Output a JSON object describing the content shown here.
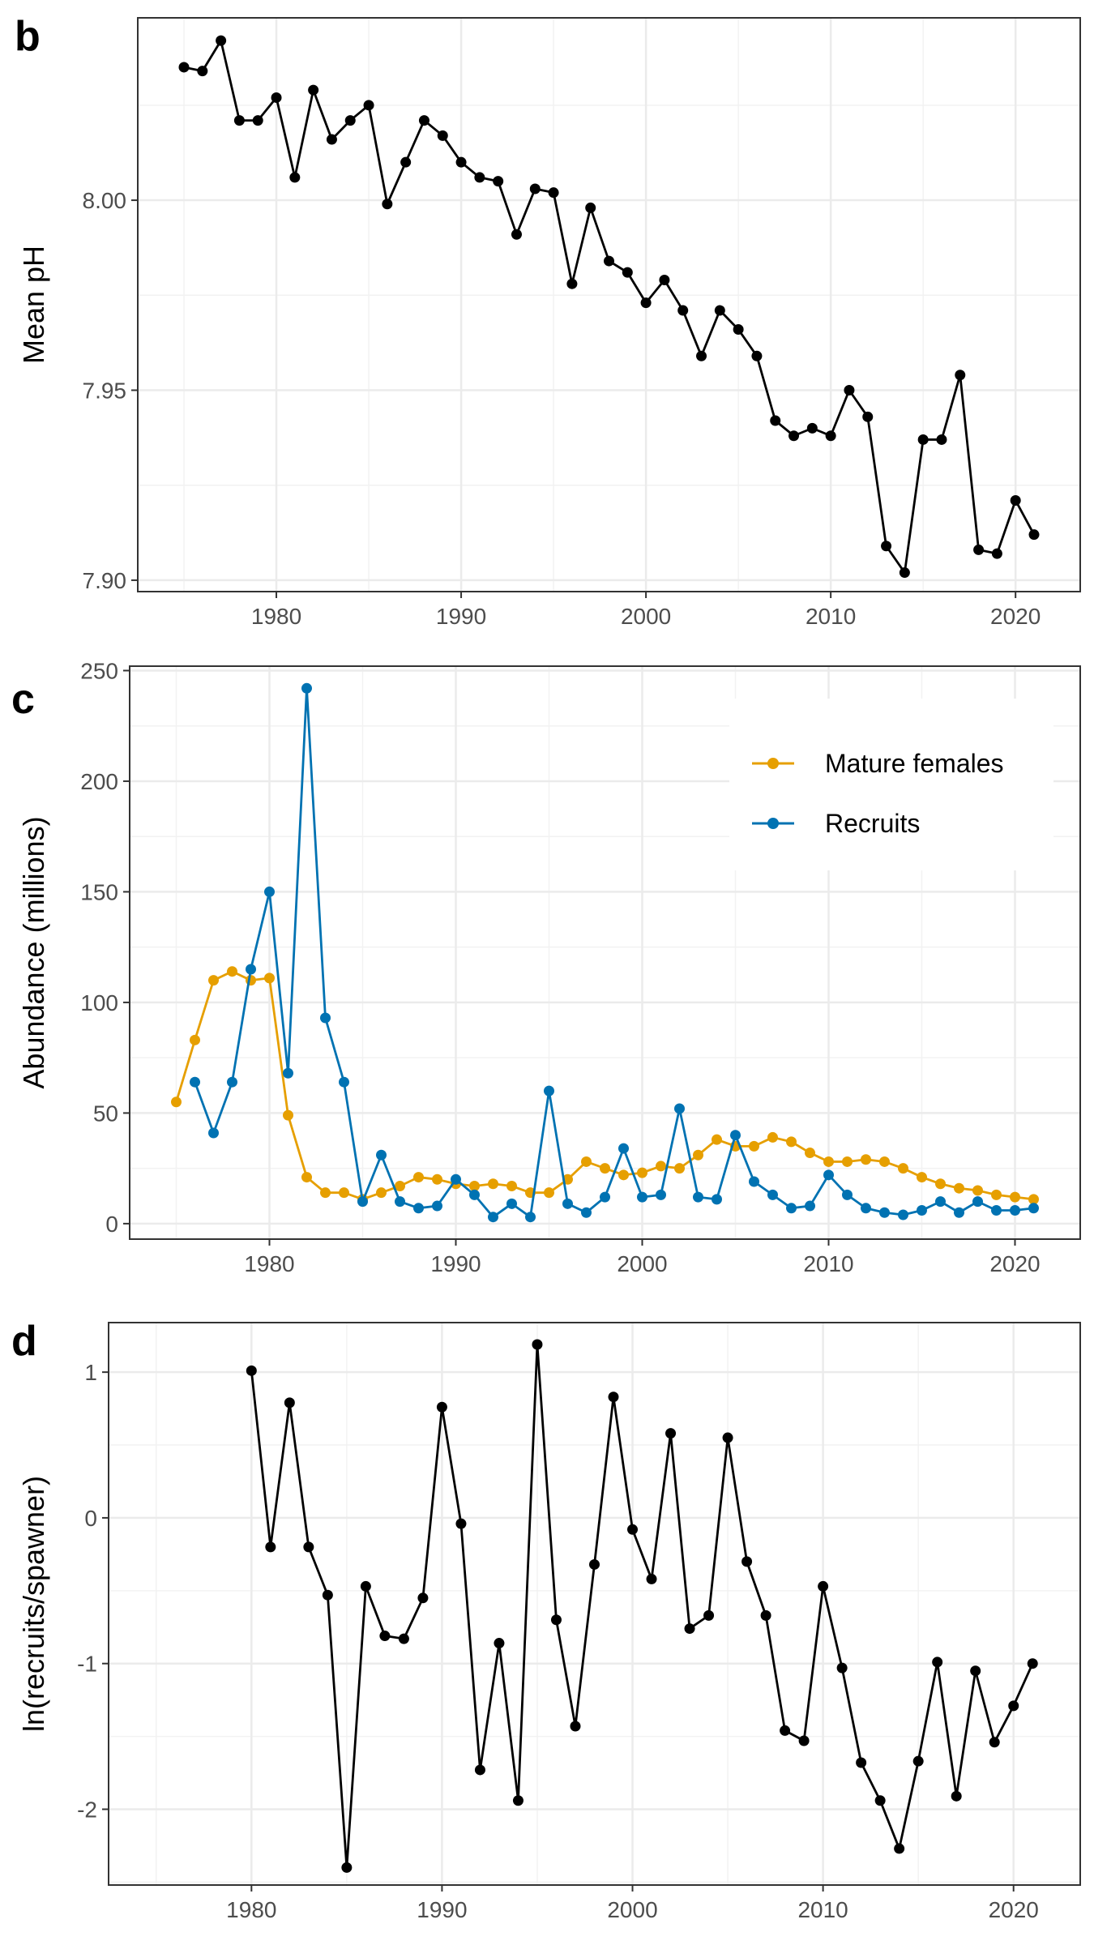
{
  "chart_data": [
    {
      "panel": "b",
      "type": "line",
      "ylabel": "Mean pH",
      "xlabel": "",
      "xlim": [
        1972.5,
        2023.5
      ],
      "ylim": [
        7.897,
        8.048
      ],
      "x_ticks": [
        1980,
        1990,
        2000,
        2010,
        2020
      ],
      "y_ticks": [
        7.9,
        7.95,
        8.0
      ],
      "y_tick_labels": [
        "7.90",
        "7.95",
        "8.00"
      ],
      "grid": true,
      "series": [
        {
          "color": "#000000",
          "x": [
            1975,
            1976,
            1977,
            1978,
            1979,
            1980,
            1981,
            1982,
            1983,
            1984,
            1985,
            1986,
            1987,
            1988,
            1989,
            1990,
            1991,
            1992,
            1993,
            1994,
            1995,
            1996,
            1997,
            1998,
            1999,
            2000,
            2001,
            2002,
            2003,
            2004,
            2005,
            2006,
            2007,
            2008,
            2009,
            2010,
            2011,
            2012,
            2013,
            2014,
            2015,
            2016,
            2017,
            2018,
            2019,
            2020,
            2021
          ],
          "values": [
            8.035,
            8.034,
            8.042,
            8.021,
            8.021,
            8.027,
            8.006,
            8.029,
            8.016,
            8.021,
            8.025,
            7.999,
            8.01,
            8.021,
            8.017,
            8.01,
            8.006,
            8.005,
            7.991,
            8.003,
            8.002,
            7.978,
            7.998,
            7.984,
            7.981,
            7.973,
            7.979,
            7.971,
            7.959,
            7.971,
            7.966,
            7.959,
            7.942,
            7.938,
            7.94,
            7.938,
            7.95,
            7.943,
            7.909,
            7.902,
            7.937,
            7.937,
            7.954,
            7.908,
            7.907,
            7.921,
            7.912
          ]
        }
      ]
    },
    {
      "panel": "c",
      "type": "line",
      "ylabel": "Abundance (millions)",
      "xlabel": "",
      "xlim": [
        1972.5,
        2023.5
      ],
      "ylim": [
        -7,
        252
      ],
      "x_ticks": [
        1980,
        1990,
        2000,
        2010,
        2020
      ],
      "y_ticks": [
        0,
        50,
        100,
        150,
        200,
        250
      ],
      "y_tick_labels": [
        "0",
        "50",
        "100",
        "150",
        "200",
        "250"
      ],
      "grid": true,
      "legend_position": "top-right",
      "series": [
        {
          "name": "Mature females",
          "color": "#E69F00",
          "x": [
            1975,
            1976,
            1977,
            1978,
            1979,
            1980,
            1981,
            1982,
            1983,
            1984,
            1985,
            1986,
            1987,
            1988,
            1989,
            1990,
            1991,
            1992,
            1993,
            1994,
            1995,
            1996,
            1997,
            1998,
            1999,
            2000,
            2001,
            2002,
            2003,
            2004,
            2005,
            2006,
            2007,
            2008,
            2009,
            2010,
            2011,
            2012,
            2013,
            2014,
            2015,
            2016,
            2017,
            2018,
            2019,
            2020,
            2021
          ],
          "values": [
            55,
            83,
            110,
            114,
            110,
            111,
            49,
            21,
            14,
            14,
            11,
            14,
            17,
            21,
            20,
            18,
            17,
            18,
            17,
            14,
            14,
            20,
            28,
            25,
            22,
            23,
            26,
            25,
            31,
            38,
            35,
            35,
            39,
            37,
            32,
            28,
            28,
            29,
            28,
            25,
            21,
            18,
            16,
            15,
            13,
            12,
            11
          ]
        },
        {
          "name": "Recruits",
          "color": "#0072B2",
          "x": [
            1976,
            1977,
            1978,
            1979,
            1980,
            1981,
            1982,
            1983,
            1984,
            1985,
            1986,
            1987,
            1988,
            1989,
            1990,
            1991,
            1992,
            1993,
            1994,
            1995,
            1996,
            1997,
            1998,
            1999,
            2000,
            2001,
            2002,
            2003,
            2004,
            2005,
            2006,
            2007,
            2008,
            2009,
            2010,
            2011,
            2012,
            2013,
            2014,
            2015,
            2016,
            2017,
            2018,
            2019,
            2020,
            2021
          ],
          "values": [
            64,
            41,
            64,
            115,
            150,
            68,
            242,
            93,
            64,
            10,
            31,
            10,
            7,
            8,
            20,
            13,
            3,
            9,
            3,
            60,
            9,
            5,
            12,
            34,
            12,
            13,
            52,
            12,
            11,
            40,
            19,
            13,
            7,
            8,
            22,
            13,
            7,
            5,
            4,
            6,
            10,
            5,
            10,
            6,
            6,
            7
          ]
        }
      ]
    },
    {
      "panel": "d",
      "type": "line",
      "ylabel": "ln(recruits/spawner)",
      "xlabel": "",
      "xlim": [
        1972.5,
        2023.5
      ],
      "ylim": [
        -2.52,
        1.34
      ],
      "x_ticks": [
        1980,
        1990,
        2000,
        2010,
        2020
      ],
      "y_ticks": [
        -2,
        -1,
        0,
        1
      ],
      "y_tick_labels": [
        "-2",
        "-1",
        "0",
        "1"
      ],
      "grid": true,
      "series": [
        {
          "color": "#000000",
          "x": [
            1980,
            1981,
            1982,
            1983,
            1984,
            1985,
            1986,
            1987,
            1988,
            1989,
            1990,
            1991,
            1992,
            1993,
            1994,
            1995,
            1996,
            1997,
            1998,
            1999,
            2000,
            2001,
            2002,
            2003,
            2004,
            2005,
            2006,
            2007,
            2008,
            2009,
            2010,
            2011,
            2012,
            2013,
            2014,
            2015,
            2016,
            2017,
            2018,
            2019,
            2020,
            2021
          ],
          "values": [
            1.01,
            -0.2,
            0.79,
            -0.2,
            -0.53,
            -2.4,
            -0.47,
            -0.81,
            -0.83,
            -0.55,
            0.76,
            -0.04,
            -1.73,
            -0.86,
            -1.94,
            1.19,
            -0.7,
            -1.43,
            -0.32,
            0.83,
            -0.08,
            -0.42,
            0.58,
            -0.76,
            -0.67,
            0.55,
            -0.3,
            -0.67,
            -1.46,
            -1.53,
            -0.47,
            -1.03,
            -1.68,
            -1.94,
            -2.27,
            -1.67,
            -0.99,
            -1.91,
            -1.05,
            -1.54,
            -1.29,
            -1.0
          ]
        }
      ]
    }
  ]
}
